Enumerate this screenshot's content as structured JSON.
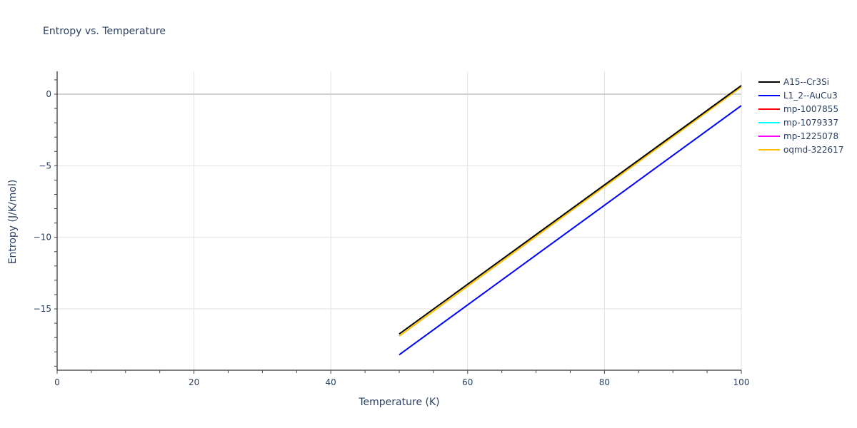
{
  "chart_data": {
    "type": "line",
    "title": "Entropy vs. Temperature",
    "xlabel": "Temperature (K)",
    "ylabel": "Entropy (J/K/mol)",
    "xlim": [
      0,
      100
    ],
    "ylim": [
      -19.3,
      1.6
    ],
    "x_ticks": [
      0,
      20,
      40,
      60,
      80,
      100
    ],
    "y_ticks": [
      0,
      -5,
      -10,
      -15
    ],
    "x_tick_labels": [
      "0",
      "20",
      "40",
      "60",
      "80",
      "100"
    ],
    "y_tick_labels": [
      "0",
      "−5",
      "−10",
      "−15"
    ],
    "grid": true,
    "legend_position": "right",
    "series": [
      {
        "name": "A15--Cr3Si",
        "color": "#000000",
        "x": [
          50,
          100
        ],
        "values": [
          -16.75,
          0.6
        ]
      },
      {
        "name": "L1_2--AuCu3",
        "color": "#0000ff",
        "x": [
          50,
          100
        ],
        "values": [
          -18.2,
          -0.8
        ]
      },
      {
        "name": "mp-1007855",
        "color": "#ff0000",
        "x": [],
        "values": []
      },
      {
        "name": "mp-1079337",
        "color": "#00ffff",
        "x": [],
        "values": []
      },
      {
        "name": "mp-1225078",
        "color": "#ff00ff",
        "x": [],
        "values": []
      },
      {
        "name": "oqmd-322617",
        "color": "#ffbf00",
        "x": [
          50,
          100
        ],
        "values": [
          -16.9,
          0.5
        ]
      }
    ]
  }
}
